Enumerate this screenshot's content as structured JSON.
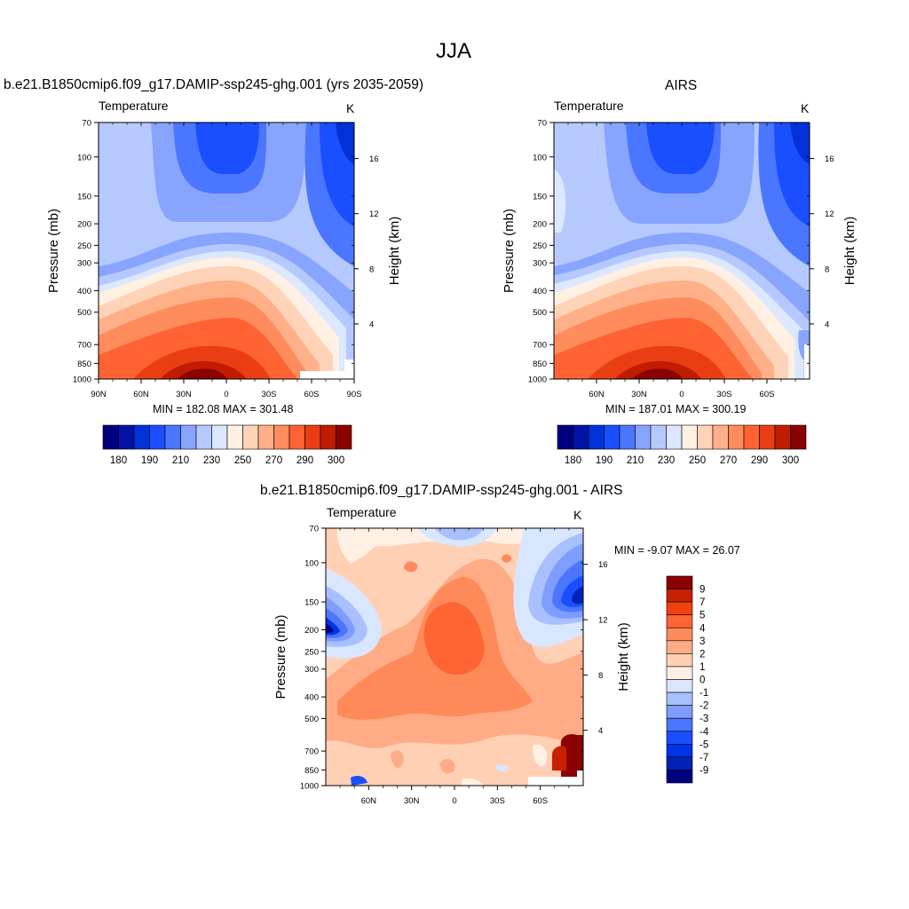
{
  "title": "JJA",
  "colors": {
    "temp_palette": [
      "#00007f",
      "#0013a6",
      "#0031d9",
      "#1a4fff",
      "#4b76ff",
      "#87a4ff",
      "#b6c9ff",
      "#dbe8ff",
      "#fff0e3",
      "#ffd3b8",
      "#ffb089",
      "#ff8c5c",
      "#ff6233",
      "#eb3d14",
      "#c01c00",
      "#8b0000"
    ],
    "diff_palette": [
      "#00007f",
      "#0022b8",
      "#0033e6",
      "#1a4fff",
      "#4b76ff",
      "#7f9cff",
      "#a9c0ff",
      "#d8e7ff",
      "#fff0e3",
      "#ffd0b4",
      "#ffac86",
      "#ff8a59",
      "#ff6434",
      "#f0420f",
      "#c82000",
      "#8b0000"
    ]
  },
  "chart_data": [
    {
      "type": "heatmap",
      "name": "top-left",
      "title": "b.e21.B1850cmip6.f09_g17.DAMIP-ssp245-ghg.001 (yrs 2035-2059)",
      "variable_label": "Temperature",
      "unit": "K",
      "ylabel": "Pressure (mb)",
      "y2label": "Height (km)",
      "xticks": [
        "90N",
        "60N",
        "30N",
        "0",
        "30S",
        "60S",
        "90S"
      ],
      "xtick_lat": [
        90,
        60,
        30,
        0,
        -30,
        -60,
        -90
      ],
      "yticks": [
        70,
        100,
        150,
        200,
        250,
        300,
        400,
        500,
        700,
        850,
        1000
      ],
      "y2ticks": [
        4,
        8,
        12,
        16
      ],
      "stats_text": "MIN = 182.08  MAX = 301.48",
      "min": 182.08,
      "max": 301.48,
      "colorbar_ticks": [
        "180",
        "190",
        "210",
        "230",
        "250",
        "270",
        "290",
        "300"
      ]
    },
    {
      "type": "heatmap",
      "name": "top-right",
      "title": "AIRS",
      "variable_label": "Temperature",
      "unit": "K",
      "ylabel": "Pressure (mb)",
      "y2label": "Height (km)",
      "xticks": [
        "60N",
        "30N",
        "0",
        "30S",
        "60S"
      ],
      "xtick_lat": [
        60,
        30,
        0,
        -30,
        -60
      ],
      "yticks": [
        70,
        100,
        150,
        200,
        250,
        300,
        400,
        500,
        700,
        850,
        1000
      ],
      "y2ticks": [
        4,
        8,
        12,
        16
      ],
      "stats_text": "MIN = 187.01  MAX = 300.19",
      "min": 187.01,
      "max": 300.19,
      "colorbar_ticks": [
        "180",
        "190",
        "210",
        "230",
        "250",
        "270",
        "290",
        "300"
      ]
    },
    {
      "type": "heatmap",
      "name": "difference",
      "title": "b.e21.B1850cmip6.f09_g17.DAMIP-ssp245-ghg.001 - AIRS",
      "variable_label": "Temperature",
      "unit": "K",
      "ylabel": "Pressure (mb)",
      "y2label": "Height (km)",
      "xticks": [
        "60N",
        "30N",
        "0",
        "30S",
        "60S"
      ],
      "xtick_lat": [
        60,
        30,
        0,
        -30,
        -60
      ],
      "yticks": [
        70,
        100,
        150,
        200,
        250,
        300,
        400,
        500,
        700,
        850,
        1000
      ],
      "y2ticks": [
        4,
        8,
        12,
        16
      ],
      "stats_text": "MIN =  -9.07  MAX =  26.07",
      "min": -9.07,
      "max": 26.07,
      "colorbar_ticks": [
        "9",
        "7",
        "5",
        "4",
        "3",
        "2",
        "1",
        "0",
        "-1",
        "-2",
        "-3",
        "-4",
        "-5",
        "-7",
        "-9"
      ]
    }
  ]
}
